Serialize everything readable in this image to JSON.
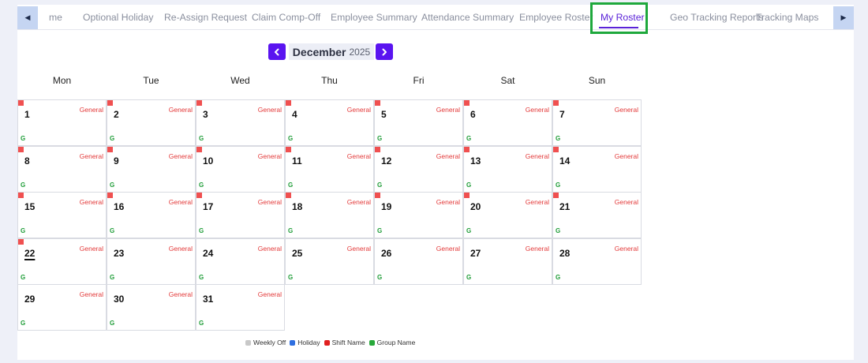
{
  "tabs": [
    {
      "label": "me",
      "active": false
    },
    {
      "label": "Optional Holiday",
      "active": false
    },
    {
      "label": "Re-Assign Request",
      "active": false
    },
    {
      "label": "Claim Comp-Off",
      "active": false
    },
    {
      "label": "Employee Summary",
      "active": false
    },
    {
      "label": "Attendance Summary",
      "active": false
    },
    {
      "label": "Employee Roster",
      "active": false
    },
    {
      "label": "My Roster",
      "active": true
    },
    {
      "label": "Geo Tracking Reports",
      "active": false
    },
    {
      "label": "Tracking Maps",
      "active": false
    }
  ],
  "scroll": {
    "left_icon": "triangle-left-icon",
    "right_icon": "triangle-right-icon"
  },
  "calendar": {
    "month": "December",
    "year": "2025",
    "weekdays": [
      "Mon",
      "Tue",
      "Wed",
      "Thu",
      "Fri",
      "Sat",
      "Sun"
    ],
    "today": "22",
    "days": [
      {
        "day": "1",
        "shift": "General",
        "group": "G",
        "marked": true
      },
      {
        "day": "2",
        "shift": "General",
        "group": "G",
        "marked": true
      },
      {
        "day": "3",
        "shift": "General",
        "group": "G",
        "marked": true
      },
      {
        "day": "4",
        "shift": "General",
        "group": "G",
        "marked": true
      },
      {
        "day": "5",
        "shift": "General",
        "group": "G",
        "marked": true
      },
      {
        "day": "6",
        "shift": "General",
        "group": "G",
        "marked": true
      },
      {
        "day": "7",
        "shift": "General",
        "group": "G",
        "marked": true
      },
      {
        "day": "8",
        "shift": "General",
        "group": "G",
        "marked": true
      },
      {
        "day": "9",
        "shift": "General",
        "group": "G",
        "marked": true
      },
      {
        "day": "10",
        "shift": "General",
        "group": "G",
        "marked": true
      },
      {
        "day": "11",
        "shift": "General",
        "group": "G",
        "marked": true
      },
      {
        "day": "12",
        "shift": "General",
        "group": "G",
        "marked": true
      },
      {
        "day": "13",
        "shift": "General",
        "group": "G",
        "marked": true
      },
      {
        "day": "14",
        "shift": "General",
        "group": "G",
        "marked": true
      },
      {
        "day": "15",
        "shift": "General",
        "group": "G",
        "marked": true
      },
      {
        "day": "16",
        "shift": "General",
        "group": "G",
        "marked": true
      },
      {
        "day": "17",
        "shift": "General",
        "group": "G",
        "marked": true
      },
      {
        "day": "18",
        "shift": "General",
        "group": "G",
        "marked": true
      },
      {
        "day": "19",
        "shift": "General",
        "group": "G",
        "marked": true
      },
      {
        "day": "20",
        "shift": "General",
        "group": "G",
        "marked": true
      },
      {
        "day": "21",
        "shift": "General",
        "group": "G",
        "marked": true
      },
      {
        "day": "22",
        "shift": "General",
        "group": "G",
        "marked": true
      },
      {
        "day": "23",
        "shift": "General",
        "group": "G",
        "marked": false
      },
      {
        "day": "24",
        "shift": "General",
        "group": "G",
        "marked": false
      },
      {
        "day": "25",
        "shift": "General",
        "group": "G",
        "marked": false
      },
      {
        "day": "26",
        "shift": "General",
        "group": "G",
        "marked": false
      },
      {
        "day": "27",
        "shift": "General",
        "group": "G",
        "marked": false
      },
      {
        "day": "28",
        "shift": "General",
        "group": "G",
        "marked": false
      },
      {
        "day": "29",
        "shift": "General",
        "group": "G",
        "marked": false
      },
      {
        "day": "30",
        "shift": "General",
        "group": "G",
        "marked": false
      },
      {
        "day": "31",
        "shift": "General",
        "group": "G",
        "marked": false
      }
    ]
  },
  "legend": [
    {
      "label": "Weekly Off",
      "color": "#c8c8c8"
    },
    {
      "label": "Holiday",
      "color": "#2f6fe0"
    },
    {
      "label": "Shift Name",
      "color": "#e02020"
    },
    {
      "label": "Group Name",
      "color": "#27a83a"
    }
  ],
  "colors": {
    "accent": "#5a14f0",
    "highlight": "#1ea83c",
    "marker": "#f05050",
    "shift_text": "#e33a3a",
    "group_text": "#1f9d38"
  }
}
